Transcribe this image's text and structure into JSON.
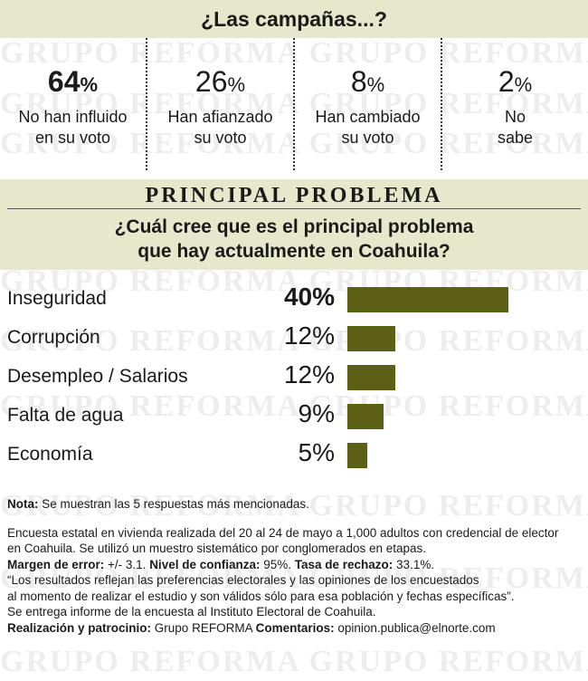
{
  "watermark": "GRUPO REFORMA GRUPO REFORMA GRUPO REFORMA",
  "question1": "¿Las campañas...?",
  "campaign": [
    {
      "pct": "64",
      "sign": "%",
      "label1": "No han influido",
      "label2": "en su voto"
    },
    {
      "pct": "26",
      "sign": "%",
      "label1": "Han afianzado",
      "label2": "su voto"
    },
    {
      "pct": "8",
      "sign": "%",
      "label1": "Han cambiado",
      "label2": "su voto"
    },
    {
      "pct": "2",
      "sign": "%",
      "label1": "No",
      "label2": "sabe"
    }
  ],
  "section_title": "PRINCIPAL PROBLEMA",
  "question2_line1": "¿Cuál cree que es el principal problema",
  "question2_line2": "que hay actualmente en Coahuila?",
  "colors": {
    "band": "#e6e8cc",
    "bar": "#5c6017"
  },
  "chart_data": {
    "type": "bar",
    "orientation": "horizontal",
    "categories": [
      "Inseguridad",
      "Corrupción",
      "Desempleo / Salarios",
      "Falta de agua",
      "Economía"
    ],
    "values": [
      40,
      12,
      12,
      9,
      5
    ],
    "value_labels": [
      "40%",
      "12%",
      "12%",
      "9%",
      "5%"
    ]
  },
  "notes": {
    "nota_label": "Nota:",
    "nota_text": " Se muestran las 5 respuestas más mencionadas.",
    "method1": "Encuesta estatal en vivienda realizada del  20 al 24 de mayo a 1,000 adultos con credencial de elector",
    "method2": "en Coahuila. Se utilizó un muestro sistemático por conglomerados en etapas.",
    "margin_label": "Margen de error:",
    "margin_val": " +/- 3.1. ",
    "conf_label": "Nivel de confianza:",
    "conf_val": " 95%. ",
    "rech_label": "Tasa de rechazo:",
    "rech_val": " 33.1%.",
    "quote1": "“Los resultados reflejan las preferencias electorales y las opiniones de los encuestados",
    "quote2": " al momento de realizar el estudio y son válidos sólo para esa población y fechas específicas”.",
    "informe": " Se entrega informe de la encuesta al Instituto Electoral de Coahuila.",
    "real_label": "Realización y patrocinio:",
    "real_val": " Grupo REFORMA ",
    "com_label": "Comentarios:",
    "com_val": " opinion.publica@elnorte.com"
  }
}
